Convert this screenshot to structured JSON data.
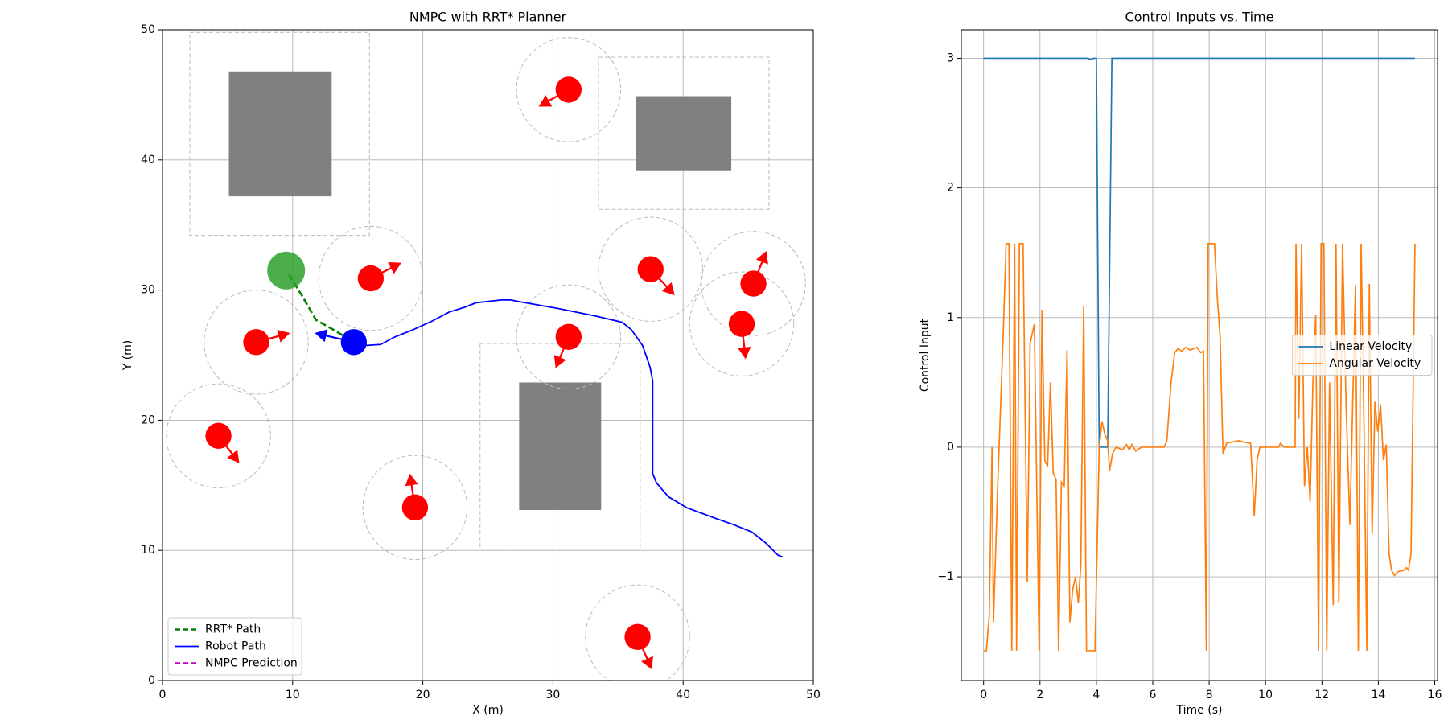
{
  "chart_data": [
    {
      "type": "trajectory",
      "title": "NMPC with RRT* Planner",
      "xlabel": "X (m)",
      "ylabel": "Y (m)",
      "xlim": [
        0,
        50
      ],
      "ylim": [
        0,
        50
      ],
      "xticks": [
        0,
        10,
        20,
        30,
        40,
        50
      ],
      "yticks": [
        0,
        10,
        20,
        30,
        40,
        50
      ],
      "grid": true,
      "legend": "lower left",
      "obstacle_color": "#808080",
      "obstacles": [
        {
          "x": [
            5.1,
            13.0
          ],
          "y": [
            37.2,
            46.8
          ]
        },
        {
          "x": [
            36.4,
            43.7
          ],
          "y": [
            39.2,
            44.9
          ]
        },
        {
          "x": [
            27.4,
            33.7
          ],
          "y": [
            13.1,
            22.9
          ]
        }
      ],
      "inflated": [
        {
          "x": [
            2.1,
            15.9
          ],
          "y": [
            34.2,
            49.8
          ]
        },
        {
          "x": [
            33.5,
            46.6
          ],
          "y": [
            36.2,
            47.9
          ]
        },
        {
          "x": [
            24.4,
            36.7
          ],
          "y": [
            10.1,
            25.9
          ]
        }
      ],
      "moving_color": "#ff0000",
      "moving_obstacles": [
        {
          "center": [
            31.2,
            45.4
          ],
          "radius": 1.0,
          "safety_radius": 4.0,
          "heading": [
            -2.3,
            -1.3
          ]
        },
        {
          "center": [
            16.0,
            30.9
          ],
          "radius": 1.0,
          "safety_radius": 4.0,
          "heading": [
            2.35,
            1.2
          ]
        },
        {
          "center": [
            7.2,
            26.0
          ],
          "radius": 1.0,
          "safety_radius": 4.0,
          "heading": [
            2.6,
            0.7
          ]
        },
        {
          "center": [
            4.3,
            18.8
          ],
          "radius": 1.0,
          "safety_radius": 4.0,
          "heading": [
            1.6,
            -2.1
          ]
        },
        {
          "center": [
            19.4,
            13.3
          ],
          "radius": 1.0,
          "safety_radius": 4.0,
          "heading": [
            -0.4,
            2.6
          ]
        },
        {
          "center": [
            31.2,
            26.4
          ],
          "radius": 1.0,
          "safety_radius": 4.0,
          "heading": [
            -1.0,
            -2.4
          ]
        },
        {
          "center": [
            37.5,
            31.6
          ],
          "radius": 1.0,
          "safety_radius": 4.0,
          "heading": [
            1.85,
            -2.0
          ]
        },
        {
          "center": [
            45.4,
            30.5
          ],
          "radius": 1.0,
          "safety_radius": 4.0,
          "heading": [
            1.0,
            2.5
          ]
        },
        {
          "center": [
            44.5,
            27.4
          ],
          "radius": 1.0,
          "safety_radius": 4.0,
          "heading": [
            0.3,
            -2.7
          ]
        },
        {
          "center": [
            36.5,
            3.35
          ],
          "radius": 1.0,
          "safety_radius": 4.0,
          "heading": [
            1.1,
            -2.5
          ]
        }
      ],
      "goal": {
        "center": [
          9.5,
          31.5
        ],
        "radius": 1.45,
        "color": "#2ca02c"
      },
      "robot": {
        "center": [
          14.7,
          26.0
        ],
        "radius": 1.0,
        "heading": [
          -3.0,
          0.7
        ],
        "color": "#0000ff"
      },
      "series": [
        {
          "name": "RRT* Path",
          "color": "#008000",
          "dashed": true,
          "x": [
            9.7,
            10.7,
            11.8,
            13.05,
            14.7
          ],
          "y": [
            31.2,
            29.6,
            27.7,
            27.0,
            26.0
          ]
        },
        {
          "name": "Robot Path",
          "color": "#0000ff",
          "dashed": false,
          "x": [
            14.69,
            15.69,
            16.76,
            17.83,
            19.26,
            20.68,
            22.04,
            23.18,
            24.11,
            26.03,
            26.75,
            27.46,
            30.31,
            33.17,
            35.31,
            36.02,
            36.88,
            37.45,
            37.66,
            37.66,
            37.95,
            38.87,
            40.3,
            42.44,
            43.87,
            45.29,
            46.36,
            47.29,
            47.65
          ],
          "y": [
            26.03,
            25.75,
            25.82,
            26.39,
            26.96,
            27.6,
            28.32,
            28.67,
            29.03,
            29.24,
            29.24,
            29.1,
            28.6,
            28.03,
            27.53,
            26.96,
            25.75,
            24.11,
            23.04,
            15.91,
            15.19,
            14.12,
            13.27,
            12.48,
            11.98,
            11.41,
            10.56,
            9.63,
            9.49
          ]
        },
        {
          "name": "NMPC Prediction",
          "color": "#bf00bf",
          "dashed": true,
          "x": [],
          "y": []
        }
      ]
    },
    {
      "type": "line",
      "title": "Control Inputs vs. Time",
      "xlabel": "Time (s)",
      "ylabel": "Control Input",
      "xlim": [
        -0.79,
        16.1
      ],
      "ylim": [
        -1.8,
        3.22
      ],
      "xticks": [
        0,
        2,
        4,
        6,
        8,
        10,
        12,
        14,
        16
      ],
      "yticks": [
        {
          "value": -1,
          "label": "−1"
        },
        0,
        1,
        2,
        3
      ],
      "grid": true,
      "legend": "center right",
      "series": [
        {
          "name": "Linear Velocity",
          "color": "#1f77b4",
          "x": [
            0,
            3.7,
            3.8,
            3.9,
            4.0,
            4.1,
            4.4,
            4.55,
            15.3
          ],
          "values": [
            3,
            3,
            2.99,
            3,
            3,
            0,
            0,
            3,
            3
          ]
        },
        {
          "name": "Angular Velocity",
          "color": "#ff7f0e",
          "x": [
            0,
            0.1,
            0.2,
            0.3,
            0.35,
            0.5,
            0.7,
            0.8,
            0.9,
            1.0,
            1.1,
            1.17,
            1.27,
            1.4,
            1.55,
            1.65,
            1.8,
            1.97,
            2.07,
            2.17,
            2.27,
            2.37,
            2.47,
            2.57,
            2.66,
            2.76,
            2.86,
            2.96,
            3.06,
            3.16,
            3.26,
            3.36,
            3.45,
            3.55,
            3.65,
            3.95,
            4.1,
            4.2,
            4.3,
            4.4,
            4.47,
            4.57,
            4.7,
            4.93,
            5.07,
            5.17,
            5.26,
            5.4,
            5.6,
            6.4,
            6.5,
            6.65,
            6.78,
            6.9,
            7.03,
            7.17,
            7.33,
            7.57,
            7.7,
            7.8,
            7.9,
            7.96,
            8.19,
            8.29,
            8.39,
            8.49,
            8.62,
            8.82,
            9.05,
            9.21,
            9.47,
            9.6,
            9.7,
            9.8,
            10.46,
            10.53,
            10.66,
            11.05,
            11.08,
            11.18,
            11.28,
            11.38,
            11.48,
            11.58,
            11.68,
            11.78,
            11.88,
            11.97,
            12.07,
            12.17,
            12.27,
            12.4,
            12.5,
            12.6,
            12.73,
            12.86,
            12.99,
            13.19,
            13.29,
            13.39,
            13.49,
            13.59,
            13.68,
            13.78,
            13.88,
            13.98,
            14.08,
            14.18,
            14.28,
            14.38,
            14.47,
            14.57,
            14.7,
            14.9,
            15.0,
            15.07,
            15.16,
            15.3
          ],
          "values": [
            -1.57,
            -1.57,
            -1.3,
            0.0,
            -1.35,
            -0.3,
            0.9,
            1.57,
            1.57,
            -1.57,
            1.57,
            -1.57,
            1.57,
            1.57,
            -1.04,
            0.8,
            0.95,
            -1.57,
            1.06,
            -0.1,
            -0.15,
            0.5,
            -0.2,
            -0.25,
            -1.57,
            -0.27,
            -0.3,
            0.75,
            -1.35,
            -1.1,
            -1.0,
            -1.2,
            -0.9,
            1.09,
            -1.57,
            -1.57,
            0.0,
            0.2,
            0.1,
            0.05,
            -0.18,
            -0.05,
            0.0,
            -0.02,
            0.02,
            -0.02,
            0.02,
            -0.03,
            0.0,
            0.0,
            0.05,
            0.5,
            0.73,
            0.76,
            0.74,
            0.77,
            0.75,
            0.77,
            0.73,
            0.74,
            -1.57,
            1.57,
            1.57,
            1.15,
            0.85,
            -0.05,
            0.03,
            0.04,
            0.05,
            0.04,
            0.03,
            -0.53,
            -0.1,
            0.0,
            0.0,
            0.03,
            0.0,
            0.0,
            1.57,
            0.22,
            1.57,
            -0.3,
            0.0,
            -0.42,
            0.5,
            1.02,
            -1.57,
            1.57,
            1.57,
            -1.57,
            0.5,
            -1.22,
            1.57,
            -1.2,
            1.57,
            0.3,
            -0.6,
            1.25,
            -1.57,
            1.57,
            0.2,
            -1.57,
            1.26,
            -0.67,
            0.35,
            0.12,
            0.33,
            -0.1,
            0.02,
            -0.82,
            -0.95,
            -0.99,
            -0.96,
            -0.95,
            -0.93,
            -0.95,
            -0.82,
            1.57
          ]
        }
      ]
    }
  ]
}
